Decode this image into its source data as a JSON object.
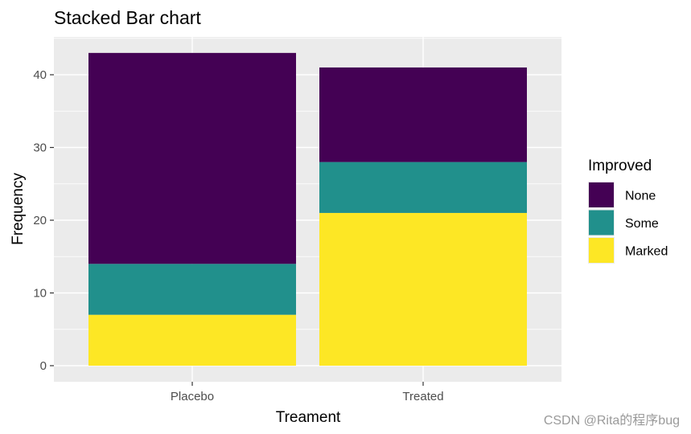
{
  "chart_data": {
    "type": "bar",
    "stacked": true,
    "title": "Stacked Bar chart",
    "xlabel": "Treament",
    "ylabel": "Frequency",
    "categories": [
      "Placebo",
      "Treated"
    ],
    "series": [
      {
        "name": "Marked",
        "values": [
          7,
          21
        ]
      },
      {
        "name": "Some",
        "values": [
          7,
          7
        ]
      },
      {
        "name": "None",
        "values": [
          29,
          13
        ]
      }
    ],
    "ylim": [
      0,
      45
    ],
    "yticks": [
      0,
      10,
      20,
      30,
      40
    ],
    "grid": true,
    "legend": {
      "title": "Improved",
      "placement": "right",
      "entries": [
        "None",
        "Some",
        "Marked"
      ]
    },
    "colors": {
      "None": "#440154",
      "Some": "#21908C",
      "Marked": "#FDE725",
      "panel": "#EBEBEB",
      "grid": "#FFFFFF"
    }
  },
  "watermark": "CSDN @Rita的程序bug"
}
